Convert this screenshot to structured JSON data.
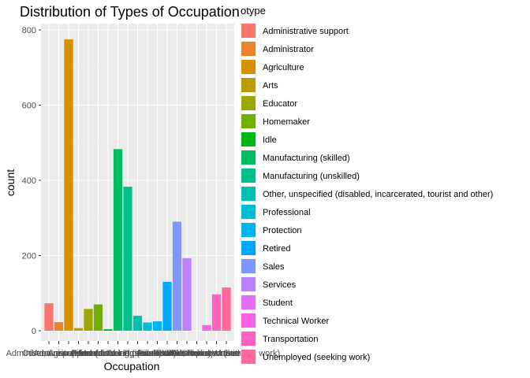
{
  "chart_data": {
    "type": "bar",
    "title": "Distribution of Types of Occupation",
    "xlabel": "Occupation",
    "ylabel": "count",
    "ylim": [
      0,
      820
    ],
    "yticks": [
      0,
      200,
      400,
      600,
      800
    ],
    "grid": true,
    "legend": {
      "title": "otype",
      "position": "right"
    },
    "categories": [
      "Administrative support",
      "Administrator",
      "Agriculture",
      "Arts",
      "Educator",
      "Homemaker",
      "Idle",
      "Manufacturing (skilled)",
      "Manufacturing (unskilled)",
      "Other, unspecified (disabled, incarcerated, tourist and other)",
      "Professional",
      "Protection",
      "Retired",
      "Sales",
      "Services",
      "Student",
      "Technical Worker",
      "Transportation",
      "Unemployed (seeking work)"
    ],
    "values": [
      73,
      23,
      775,
      7,
      58,
      70,
      4,
      483,
      383,
      40,
      22,
      25,
      130,
      290,
      193,
      0,
      15,
      97,
      115
    ],
    "colors": [
      "#F8766D",
      "#E9842C",
      "#D69100",
      "#BC9D00",
      "#9CA700",
      "#6FB000",
      "#00B813",
      "#00BD61",
      "#00C08E",
      "#00C0B4",
      "#00BDD4",
      "#00B5EE",
      "#00A7FF",
      "#7F96FF",
      "#BC81FF",
      "#E26EF7",
      "#F863DF",
      "#FF62BF",
      "#FF6A9A"
    ],
    "x_tick_labels": [
      "Administrative support",
      "Administrator",
      "Agriculture",
      "Arts",
      "Educator",
      "Homemaker",
      "Idle",
      "Manufacturing (skilled)",
      "Manufacturing (unskilled)",
      "Other, unspecified (disabled, incarcerated, tourist and other)",
      "Professional",
      "Protection",
      "Retired",
      "Sales",
      "Services",
      "Student",
      "Technical Worker",
      "Transportation",
      "Unemployed (seeking work)"
    ]
  }
}
